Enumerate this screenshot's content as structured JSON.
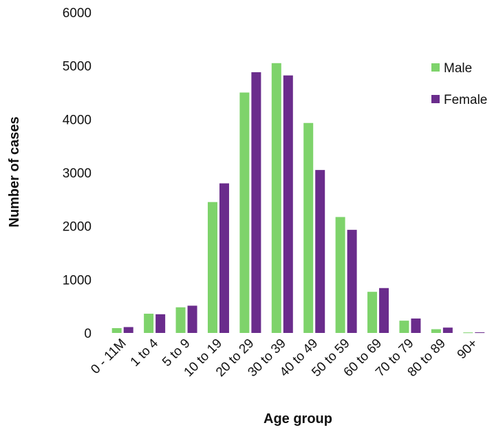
{
  "chart_data": {
    "type": "bar",
    "title": "",
    "xlabel": "Age group",
    "ylabel": "Number of cases",
    "ylim": [
      0,
      6000
    ],
    "yticks": [
      0,
      1000,
      2000,
      3000,
      4000,
      5000,
      6000
    ],
    "grid": false,
    "legend_position": "right",
    "categories": [
      "0 - 11M",
      "1 to 4",
      "5 to 9",
      "10 to 19",
      "20 to 29",
      "30 to 39",
      "40 to 49",
      "50 to 59",
      "60 to 69",
      "70 to 79",
      "80 to 89",
      "90+"
    ],
    "series": [
      {
        "name": "Male",
        "color": "#7ED36B",
        "values": [
          90,
          360,
          480,
          2450,
          4500,
          5050,
          3930,
          2170,
          770,
          230,
          70,
          10
        ]
      },
      {
        "name": "Female",
        "color": "#6A2C8C",
        "values": [
          110,
          350,
          510,
          2800,
          4880,
          4820,
          3050,
          1930,
          840,
          270,
          100,
          12
        ]
      }
    ]
  }
}
